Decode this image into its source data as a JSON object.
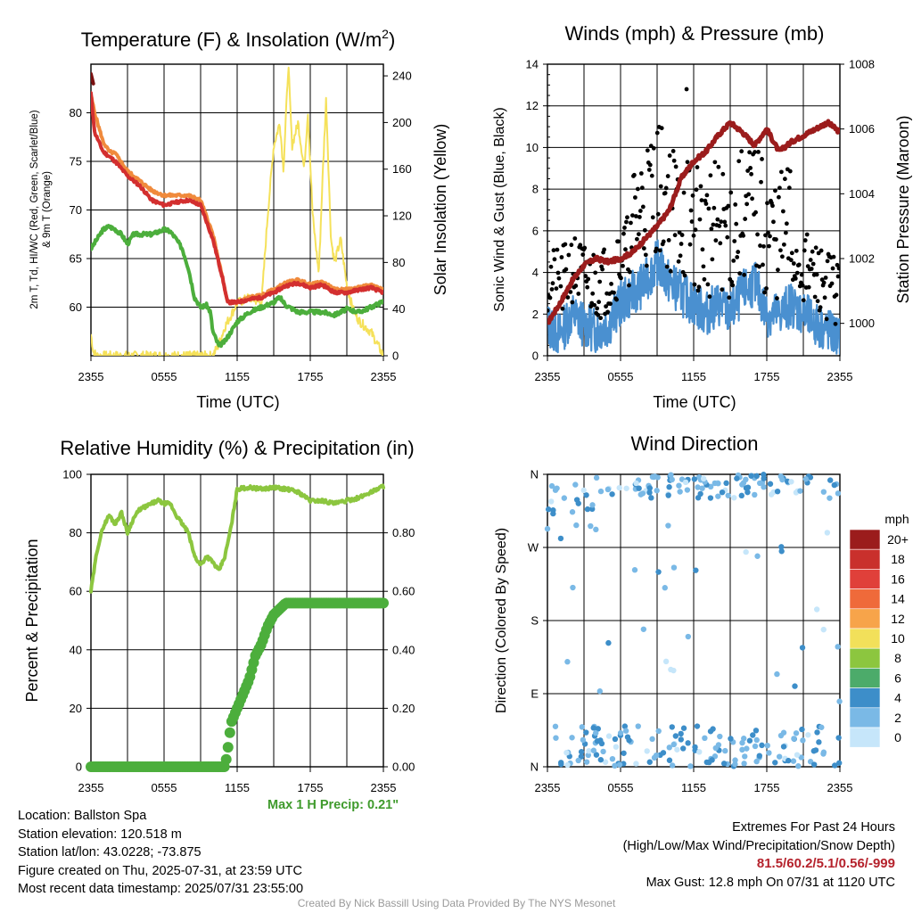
{
  "colors": {
    "temp": "#d32f2f",
    "dew": "#4cae3c",
    "heat_index": "#c9302c",
    "temp9m": "#f08a3c",
    "solar": "#f5e15a",
    "wind": "#4a90d0",
    "gust": "#000000",
    "pressure": "#9b1c1c",
    "rh": "#8cc63f",
    "precip": "#4cae3c"
  },
  "chart_data": [
    {
      "id": "temperature",
      "type": "line",
      "title": "Temperature (F) & Insolation (W/m²)",
      "title_main": "Temperature (F) & Insolation (W/m",
      "title_sup": "2",
      "title_end": ")",
      "xlabel": "Time (UTC)",
      "ylabel_left_1": "2m T, Td, HI/WC (Red, Green, Scarlet/Blue)",
      "ylabel_left_2": "& 9m T (Orange)",
      "ylabel_right": "Solar Insolation (Yellow)",
      "x_ticks": [
        "2355",
        "0555",
        "1155",
        "1755",
        "2355"
      ],
      "xlim_hours": [
        0,
        24
      ],
      "ylim": [
        55,
        85
      ],
      "y_ticks": [
        60,
        65,
        70,
        75,
        80
      ],
      "y2lim": [
        0,
        250
      ],
      "y2_ticks": [
        0,
        40,
        80,
        120,
        160,
        200,
        240
      ],
      "series": {
        "t2m": [
          [
            0,
            82
          ],
          [
            0.3,
            78
          ],
          [
            1,
            76
          ],
          [
            2,
            75
          ],
          [
            3,
            73.5
          ],
          [
            4,
            72.5
          ],
          [
            5,
            71
          ],
          [
            6,
            70.5
          ],
          [
            7,
            70.8
          ],
          [
            8,
            71
          ],
          [
            9,
            70.5
          ],
          [
            10,
            67
          ],
          [
            10.8,
            63
          ],
          [
            11.2,
            60.5
          ],
          [
            12,
            60.5
          ],
          [
            13,
            60.8
          ],
          [
            14,
            61
          ],
          [
            15,
            61.5
          ],
          [
            16,
            62.2
          ],
          [
            17,
            62.5
          ],
          [
            18,
            62
          ],
          [
            19,
            62.3
          ],
          [
            20,
            61.5
          ],
          [
            21,
            61.5
          ],
          [
            22,
            61.8
          ],
          [
            23,
            62
          ],
          [
            24,
            61.5
          ]
        ],
        "t9m": [
          [
            0,
            81.8
          ],
          [
            0.3,
            80
          ],
          [
            1,
            77
          ],
          [
            1.5,
            76
          ],
          [
            2,
            75.8
          ],
          [
            3,
            74
          ],
          [
            4,
            73
          ],
          [
            5,
            72
          ],
          [
            6,
            71.5
          ],
          [
            7,
            71.5
          ],
          [
            8,
            71.5
          ],
          [
            9,
            71
          ],
          [
            10,
            67.5
          ],
          [
            10.8,
            63
          ],
          [
            11.2,
            60.5
          ],
          [
            12,
            60.5
          ],
          [
            13,
            61
          ],
          [
            14,
            61.2
          ],
          [
            15,
            61.8
          ],
          [
            16,
            62.5
          ],
          [
            17,
            62.8
          ],
          [
            18,
            62.3
          ],
          [
            19,
            62.6
          ],
          [
            20,
            61.8
          ],
          [
            21,
            61.8
          ],
          [
            22,
            62
          ],
          [
            23,
            62.3
          ],
          [
            24,
            61.8
          ]
        ],
        "dew": [
          [
            0,
            66
          ],
          [
            0.5,
            67
          ],
          [
            1,
            68
          ],
          [
            1.5,
            68.3
          ],
          [
            2,
            68
          ],
          [
            2.5,
            67.5
          ],
          [
            3,
            66.5
          ],
          [
            3.5,
            67.5
          ],
          [
            4,
            67.5
          ],
          [
            5,
            67.5
          ],
          [
            6,
            68
          ],
          [
            6.5,
            67.8
          ],
          [
            7,
            67
          ],
          [
            7.5,
            66
          ],
          [
            8,
            64
          ],
          [
            8.5,
            61
          ],
          [
            9,
            60
          ],
          [
            9.5,
            60.2
          ],
          [
            9.8,
            59.5
          ],
          [
            10,
            57.5
          ],
          [
            10.5,
            56
          ],
          [
            11,
            56.5
          ],
          [
            11.5,
            57.5
          ],
          [
            12,
            58.5
          ],
          [
            13,
            59.5
          ],
          [
            14,
            60
          ],
          [
            15,
            60.5
          ],
          [
            15.5,
            61
          ],
          [
            16,
            60.2
          ],
          [
            17,
            59.5
          ],
          [
            18,
            59.5
          ],
          [
            19,
            59.5
          ],
          [
            20,
            59.2
          ],
          [
            21,
            59.8
          ],
          [
            22,
            59.5
          ],
          [
            23,
            60
          ],
          [
            24,
            60.6
          ]
        ],
        "solar": [
          [
            0,
            18
          ],
          [
            0.2,
            3
          ],
          [
            0.5,
            0
          ],
          [
            9,
            0
          ],
          [
            10,
            0
          ],
          [
            10.5,
            10
          ],
          [
            11,
            25
          ],
          [
            11.5,
            35
          ],
          [
            12,
            45
          ],
          [
            13,
            50
          ],
          [
            14,
            45
          ],
          [
            14.5,
            120
          ],
          [
            15,
            180
          ],
          [
            15.5,
            200
          ],
          [
            15.8,
            160
          ],
          [
            16.2,
            250
          ],
          [
            16.5,
            180
          ],
          [
            17,
            200
          ],
          [
            17.5,
            160
          ],
          [
            17.8,
            210
          ],
          [
            18.2,
            120
          ],
          [
            18.7,
            70
          ],
          [
            19,
            150
          ],
          [
            19.3,
            220
          ],
          [
            19.7,
            100
          ],
          [
            20,
            80
          ],
          [
            20.5,
            100
          ],
          [
            21,
            60
          ],
          [
            21.5,
            40
          ],
          [
            22,
            30
          ],
          [
            23,
            20
          ],
          [
            23.5,
            10
          ],
          [
            24,
            0
          ]
        ]
      }
    },
    {
      "id": "winds",
      "type": "line",
      "title": "Winds (mph) & Pressure (mb)",
      "xlabel": "Time (UTC)",
      "ylabel_left": "Sonic Wind & Gust (Blue, Black)",
      "ylabel_right": "Station Pressure (Maroon)",
      "x_ticks": [
        "2355",
        "0555",
        "1155",
        "1755",
        "2355"
      ],
      "xlim_hours": [
        0,
        24
      ],
      "ylim": [
        0,
        14
      ],
      "y_ticks": [
        0,
        2,
        4,
        6,
        8,
        10,
        12,
        14
      ],
      "y2lim": [
        999,
        1008
      ],
      "y2_ticks": [
        1000,
        1002,
        1004,
        1006,
        1008
      ],
      "max_gust": 12.8,
      "series": {
        "pressure": [
          [
            0,
            1000
          ],
          [
            1,
            1000.6
          ],
          [
            2,
            1001.3
          ],
          [
            3,
            1001.8
          ],
          [
            4,
            1002
          ],
          [
            5,
            1001.9
          ],
          [
            6,
            1002
          ],
          [
            7,
            1002.2
          ],
          [
            8,
            1002.6
          ],
          [
            9,
            1003
          ],
          [
            10,
            1003.5
          ],
          [
            11,
            1004.5
          ],
          [
            12,
            1005
          ],
          [
            13,
            1005.3
          ],
          [
            14,
            1005.8
          ],
          [
            15,
            1006.2
          ],
          [
            16,
            1005.9
          ],
          [
            17,
            1005.5
          ],
          [
            18,
            1006
          ],
          [
            19,
            1005.3
          ],
          [
            20,
            1005.6
          ],
          [
            21,
            1005.8
          ],
          [
            22,
            1006
          ],
          [
            23,
            1006.2
          ],
          [
            24,
            1005.9
          ]
        ],
        "wind": [
          [
            0,
            1.5
          ],
          [
            1,
            1
          ],
          [
            2,
            2
          ],
          [
            3,
            1.5
          ],
          [
            4,
            1.2
          ],
          [
            5,
            1.5
          ],
          [
            6,
            2.5
          ],
          [
            7,
            3
          ],
          [
            8,
            3.5
          ],
          [
            9,
            4.5
          ],
          [
            10,
            3.5
          ],
          [
            11,
            3
          ],
          [
            12,
            2.5
          ],
          [
            13,
            2
          ],
          [
            14,
            2.5
          ],
          [
            15,
            2
          ],
          [
            16,
            3
          ],
          [
            17,
            3.5
          ],
          [
            18,
            2
          ],
          [
            19,
            2
          ],
          [
            20,
            2.5
          ],
          [
            21,
            2
          ],
          [
            22,
            1.5
          ],
          [
            23,
            1.2
          ],
          [
            24,
            0.8
          ]
        ]
      }
    },
    {
      "id": "humidity",
      "type": "line",
      "title": "Relative Humidity (%) & Precipitation (in)",
      "ylabel": "Percent & Precipitation",
      "x_ticks": [
        "2355",
        "0555",
        "1155",
        "1755",
        "2355"
      ],
      "xlim_hours": [
        0,
        24
      ],
      "ylim": [
        0,
        100
      ],
      "y_ticks": [
        0,
        20,
        40,
        60,
        80,
        100
      ],
      "y2lim": [
        0,
        1
      ],
      "y2_ticks": [
        "0.00",
        "0.20",
        "0.40",
        "0.60",
        "0.80"
      ],
      "max_precip_label": "Max 1 H Precip: 0.21\"",
      "series": {
        "rh": [
          [
            0,
            60
          ],
          [
            0.5,
            74
          ],
          [
            1,
            82
          ],
          [
            1.5,
            86
          ],
          [
            2,
            83
          ],
          [
            2.5,
            87
          ],
          [
            3,
            80
          ],
          [
            3.5,
            85
          ],
          [
            4,
            88
          ],
          [
            5,
            90
          ],
          [
            5.5,
            91
          ],
          [
            6,
            90
          ],
          [
            6.5,
            90
          ],
          [
            7,
            86
          ],
          [
            8,
            80
          ],
          [
            8.5,
            72
          ],
          [
            9,
            69
          ],
          [
            9.5,
            72
          ],
          [
            10,
            70
          ],
          [
            10.5,
            67
          ],
          [
            11,
            72
          ],
          [
            11.5,
            82
          ],
          [
            12,
            95
          ],
          [
            13,
            95.5
          ],
          [
            14,
            95
          ],
          [
            15,
            95.5
          ],
          [
            16,
            95
          ],
          [
            17,
            94
          ],
          [
            18,
            91
          ],
          [
            19,
            91
          ],
          [
            20,
            90
          ],
          [
            21,
            91
          ],
          [
            22,
            92
          ],
          [
            23,
            94
          ],
          [
            24,
            96
          ]
        ],
        "precip": [
          [
            0,
            0
          ],
          [
            11,
            0
          ],
          [
            11.2,
            0.05
          ],
          [
            11.5,
            0.15
          ],
          [
            12,
            0.2
          ],
          [
            12.5,
            0.25
          ],
          [
            13,
            0.3
          ],
          [
            13.5,
            0.38
          ],
          [
            14,
            0.42
          ],
          [
            14.5,
            0.48
          ],
          [
            15,
            0.52
          ],
          [
            15.5,
            0.54
          ],
          [
            16,
            0.56
          ],
          [
            18,
            0.56
          ],
          [
            19,
            0.56
          ],
          [
            24,
            0.56
          ]
        ]
      }
    },
    {
      "id": "direction",
      "type": "scatter",
      "title": "Wind Direction",
      "ylabel": "Direction (Colored By Speed)",
      "x_ticks": [
        "2355",
        "0555",
        "1155",
        "1755",
        "2355"
      ],
      "xlim_hours": [
        0,
        24
      ],
      "ylim": [
        0,
        360
      ],
      "y_ticks": [
        "N",
        "E",
        "S",
        "W",
        "N"
      ],
      "legend_title": "mph",
      "legend_labels": [
        "20+",
        "18",
        "16",
        "14",
        "12",
        "10",
        "8",
        "6",
        "4",
        "2",
        "0"
      ],
      "legend_colors": [
        "#9b1c1c",
        "#c9302c",
        "#e0403a",
        "#ef6a3a",
        "#f7a44a",
        "#f2e05a",
        "#8cc63f",
        "#4cab6a",
        "#3d8ec9",
        "#7ab9e6",
        "#c6e6fa"
      ]
    }
  ],
  "info_left": [
    "Location: Ballston Spa",
    "Station elevation: 120.518 m",
    "Station lat/lon: 43.0228; -73.875",
    "Figure created on Thu, 2025-07-31, at 23:59 UTC",
    "Most recent data timestamp: 2025/07/31 23:55:00"
  ],
  "info_right": {
    "title": "Extremes For Past 24 Hours",
    "subtitle": "(High/Low/Max Wind/Precipitation/Snow Depth)",
    "values": "81.5/60.2/5.1/0.56/-999",
    "max_gust": "Max Gust: 12.8 mph On 07/31 at 1120 UTC"
  },
  "credit": "Created By Nick Bassill Using Data Provided By The NYS Mesonet"
}
